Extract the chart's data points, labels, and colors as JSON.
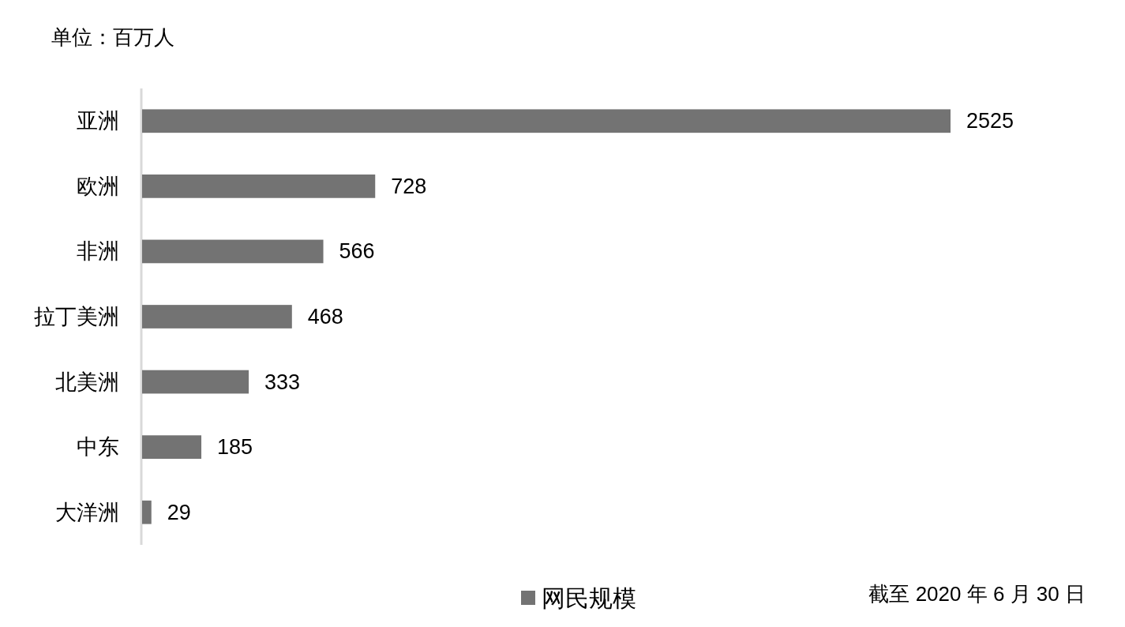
{
  "chart_data": {
    "type": "bar",
    "orientation": "horizontal",
    "title": "单位：百万人",
    "categories": [
      "亚洲",
      "欧洲",
      "非洲",
      "拉丁美洲",
      "北美洲",
      "中东",
      "大洋洲"
    ],
    "series": [
      {
        "name": "网民规模",
        "color": "#737373",
        "values": [
          2525,
          728,
          566,
          468,
          333,
          185,
          29
        ]
      }
    ],
    "data_labels": true,
    "legend": "bottom",
    "annotations": [
      "截至 2020 年 6 月 30 日"
    ]
  }
}
